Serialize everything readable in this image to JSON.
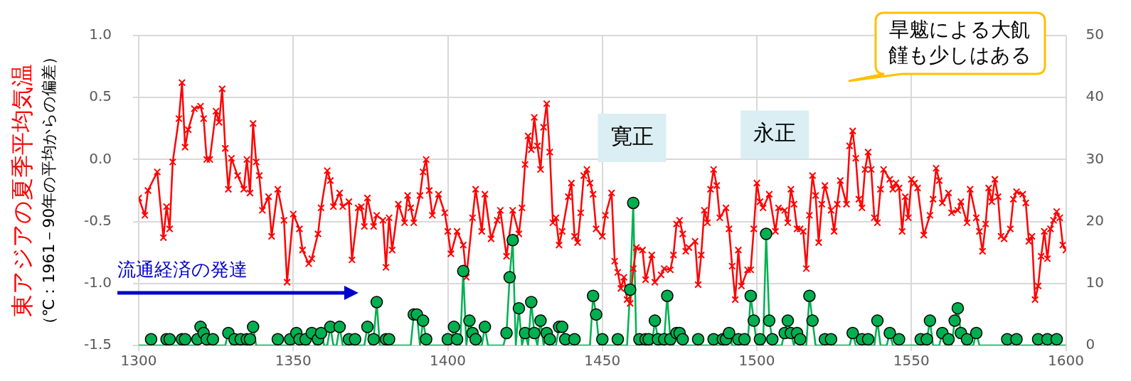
{
  "chart_data": {
    "type": "line",
    "ylabel": "東アジアの夏季平均気温",
    "x": [
      1300,
      1301,
      1302,
      1303,
      1304,
      1305,
      1306,
      1307,
      1308,
      1309,
      1310,
      1311,
      1312,
      1313,
      1314,
      1315,
      1316,
      1317,
      1318,
      1319,
      1320,
      1321,
      1322,
      1323,
      1324,
      1325,
      1326,
      1327,
      1328,
      1329,
      1330,
      1331,
      1332,
      1333,
      1334,
      1335,
      1336,
      1337,
      1338,
      1339,
      1340,
      1341,
      1342,
      1343,
      1344,
      1345,
      1346,
      1347,
      1348,
      1349,
      1350,
      1351,
      1352,
      1353,
      1354,
      1355,
      1356,
      1357,
      1358,
      1359,
      1360,
      1361,
      1362,
      1363,
      1364,
      1365,
      1366,
      1367,
      1368,
      1369,
      1370,
      1371,
      1372,
      1373,
      1374,
      1375,
      1376,
      1377,
      1378,
      1379,
      1380,
      1381,
      1382,
      1383,
      1384,
      1385,
      1386,
      1387,
      1388,
      1389,
      1390,
      1391,
      1392,
      1393,
      1394,
      1395,
      1396,
      1397,
      1398,
      1399,
      1400,
      1401,
      1402,
      1403,
      1404,
      1405,
      1406,
      1407,
      1408,
      1409,
      1410,
      1411,
      1412,
      1413,
      1414,
      1415,
      1416,
      1417,
      1418,
      1419,
      1420,
      1421,
      1422,
      1423,
      1424,
      1425,
      1426,
      1427,
      1428,
      1429,
      1430,
      1431,
      1432,
      1433,
      1434,
      1435,
      1436,
      1437,
      1438,
      1439,
      1440,
      1441,
      1442,
      1443,
      1444,
      1445,
      1446,
      1447,
      1448,
      1449,
      1450,
      1451,
      1452,
      1453,
      1454,
      1455,
      1456,
      1457,
      1458,
      1459,
      1460,
      1461,
      1462,
      1463,
      1464,
      1465,
      1466,
      1467,
      1468,
      1469,
      1470,
      1471,
      1472,
      1473,
      1474,
      1475,
      1476,
      1477,
      1478,
      1479,
      1480,
      1481,
      1482,
      1483,
      1484,
      1485,
      1486,
      1487,
      1488,
      1489,
      1490,
      1491,
      1492,
      1493,
      1494,
      1495,
      1496,
      1497,
      1498,
      1499,
      1500,
      1501,
      1502,
      1503,
      1504,
      1505,
      1506,
      1507,
      1508,
      1509,
      1510,
      1511,
      1512,
      1513,
      1514,
      1515,
      1516,
      1517,
      1518,
      1519,
      1520,
      1521,
      1522,
      1523,
      1524,
      1525,
      1526,
      1527,
      1528,
      1529,
      1530,
      1531,
      1532,
      1533,
      1534,
      1535,
      1536,
      1537,
      1538,
      1539,
      1540,
      1541,
      1542,
      1543,
      1544,
      1545,
      1546,
      1547,
      1548,
      1549,
      1550,
      1551,
      1552,
      1553,
      1554,
      1555,
      1556,
      1557,
      1558,
      1559,
      1560,
      1561,
      1562,
      1563,
      1564,
      1565,
      1566,
      1567,
      1568,
      1569,
      1570,
      1571,
      1572,
      1573,
      1574,
      1575,
      1576,
      1577,
      1578,
      1579,
      1580,
      1581,
      1582,
      1583,
      1584,
      1585,
      1586,
      1587,
      1588,
      1589,
      1590,
      1591,
      1592,
      1593,
      1594,
      1595,
      1596,
      1597,
      1598,
      1599,
      1600
    ],
    "series": [
      {
        "color": "#ff0000",
        "marker": "cross",
        "x": [
          1300,
          1302,
          1303,
          1306,
          1308,
          1309,
          1310,
          1311,
          1313,
          1314,
          1315,
          1316,
          1318,
          1320,
          1321,
          1322,
          1323,
          1325,
          1326,
          1327,
          1328,
          1329,
          1330,
          1332,
          1334,
          1335,
          1336,
          1337,
          1338,
          1339,
          1340,
          1342,
          1343,
          1345,
          1347,
          1348,
          1350,
          1352,
          1353,
          1355,
          1356,
          1358,
          1359,
          1361,
          1362,
          1363,
          1365,
          1366,
          1368,
          1369,
          1371,
          1372,
          1373,
          1374,
          1376,
          1377,
          1379,
          1380,
          1381,
          1382,
          1384,
          1386,
          1387,
          1388,
          1389,
          1391,
          1392,
          1393,
          1394,
          1395,
          1397,
          1399,
          1400,
          1401,
          1403,
          1405,
          1406,
          1408,
          1409,
          1411,
          1412,
          1414,
          1416,
          1417,
          1419,
          1421,
          1423,
          1424,
          1425,
          1426,
          1427,
          1428,
          1429,
          1430,
          1431,
          1432,
          1433,
          1434,
          1435,
          1436,
          1437,
          1439,
          1440,
          1441,
          1442,
          1443,
          1444,
          1445,
          1446,
          1447,
          1448,
          1450,
          1451,
          1453,
          1454,
          1455,
          1456,
          1457,
          1458,
          1459,
          1460,
          1461,
          1463,
          1464,
          1466,
          1467,
          1469,
          1470,
          1472,
          1473,
          1474,
          1475,
          1476,
          1477,
          1478,
          1480,
          1481,
          1482,
          1483,
          1484,
          1485,
          1486,
          1487,
          1488,
          1490,
          1491,
          1492,
          1493,
          1494,
          1495,
          1497,
          1498,
          1499,
          1500,
          1501,
          1502,
          1504,
          1506,
          1507,
          1509,
          1510,
          1511,
          1512,
          1513,
          1514,
          1515,
          1516,
          1517,
          1518,
          1519,
          1520,
          1521,
          1522,
          1524,
          1525,
          1526,
          1527,
          1529,
          1530,
          1531,
          1532,
          1533,
          1534,
          1535,
          1536,
          1537,
          1538,
          1539,
          1540,
          1541,
          1543,
          1544,
          1545,
          1546,
          1547,
          1548,
          1549,
          1550,
          1551,
          1552,
          1554,
          1556,
          1557,
          1558,
          1559,
          1560,
          1562,
          1563,
          1565,
          1566,
          1568,
          1569,
          1571,
          1572,
          1573,
          1574,
          1575,
          1576,
          1577,
          1578,
          1579,
          1580,
          1582,
          1583,
          1584,
          1586,
          1587,
          1588,
          1589,
          1590,
          1591,
          1592,
          1593,
          1594,
          1595,
          1596,
          1597,
          1598,
          1599,
          1600
        ],
        "values": [
          -0.31,
          -0.45,
          -0.25,
          -0.1,
          -0.63,
          -0.38,
          -0.56,
          -0.02,
          0.33,
          0.62,
          0.1,
          0.24,
          0.41,
          0.43,
          0.33,
          0.0,
          0.0,
          0.39,
          0.3,
          0.57,
          0.09,
          -0.24,
          0.01,
          -0.13,
          -0.24,
          0.0,
          -0.27,
          0.29,
          -0.02,
          -0.13,
          -0.41,
          -0.3,
          -0.62,
          -0.24,
          -0.49,
          -0.99,
          -0.44,
          -0.56,
          -0.73,
          -0.84,
          -0.8,
          -0.6,
          -0.39,
          -0.09,
          -0.17,
          -0.38,
          -0.27,
          -0.38,
          -0.34,
          -0.81,
          -0.39,
          -0.38,
          -0.54,
          -0.31,
          -0.54,
          -0.45,
          -0.49,
          -0.87,
          -0.47,
          -0.73,
          -0.36,
          -0.51,
          -0.29,
          -0.39,
          -0.51,
          -0.29,
          -0.1,
          0.0,
          -0.25,
          -0.45,
          -0.28,
          -0.43,
          -0.58,
          -0.76,
          -0.58,
          -0.69,
          -0.95,
          -0.47,
          -0.24,
          -0.58,
          -0.28,
          -0.64,
          -0.49,
          -0.41,
          -0.78,
          -0.41,
          -0.6,
          -0.39,
          -0.04,
          0.19,
          0.08,
          0.34,
          0.11,
          -0.08,
          0.26,
          0.45,
          0.06,
          -0.51,
          -0.47,
          -0.69,
          -0.58,
          -0.3,
          -0.19,
          -0.62,
          -0.67,
          -0.43,
          -0.13,
          -0.08,
          -0.19,
          -0.28,
          -0.56,
          -0.62,
          -0.45,
          -0.27,
          -0.82,
          -0.91,
          -1.04,
          -0.95,
          -1.13,
          -1.16,
          -0.88,
          -0.71,
          -0.73,
          -0.97,
          -0.77,
          -0.99,
          -0.93,
          -0.88,
          -0.89,
          -0.77,
          -0.52,
          -0.49,
          -0.6,
          -0.74,
          -0.71,
          -0.66,
          -1.01,
          -0.77,
          -0.41,
          -0.51,
          -0.24,
          -0.08,
          -0.21,
          -0.47,
          -0.39,
          -0.56,
          -0.86,
          -1.13,
          -0.73,
          -1.02,
          -0.89,
          -0.89,
          -0.56,
          -0.19,
          -0.34,
          -0.39,
          -0.28,
          -0.58,
          -0.39,
          -0.41,
          -0.51,
          -0.24,
          -0.36,
          -0.56,
          -0.56,
          -0.58,
          -0.88,
          -0.45,
          -0.13,
          -0.29,
          -0.67,
          -0.36,
          -0.21,
          -0.41,
          -0.58,
          -0.36,
          -0.17,
          -0.36,
          0.11,
          0.23,
          0.01,
          -0.32,
          -0.39,
          -0.08,
          0.06,
          -0.08,
          -0.47,
          -0.51,
          -0.24,
          -0.08,
          -0.16,
          -0.24,
          -0.19,
          -0.23,
          -0.58,
          -0.3,
          -0.47,
          -0.16,
          -0.19,
          -0.23,
          -0.61,
          -0.45,
          -0.32,
          -0.07,
          -0.17,
          -0.35,
          -0.27,
          -0.43,
          -0.41,
          -0.34,
          -0.51,
          -0.24,
          -0.47,
          -0.58,
          -0.74,
          -0.52,
          -0.23,
          -0.34,
          -0.16,
          -0.3,
          -0.62,
          -0.64,
          -0.56,
          -0.32,
          -0.26,
          -0.28,
          -0.35,
          -0.66,
          -0.62,
          -1.13,
          -1.02,
          -0.78,
          -0.58,
          -0.8,
          -0.56,
          -0.49,
          -0.42,
          -0.47,
          -0.69,
          -0.73
        ]
      },
      {
        "type": "scatter",
        "color": "#00b050",
        "marker": "circle",
        "axis": "y2",
        "x": [
          1304,
          1309,
          1310,
          1314,
          1315,
          1319,
          1320,
          1321,
          1322,
          1324,
          1329,
          1331,
          1333,
          1335,
          1336,
          1337,
          1345,
          1349,
          1351,
          1352,
          1354,
          1356,
          1358,
          1359,
          1362,
          1365,
          1368,
          1370,
          1374,
          1376,
          1377,
          1380,
          1381,
          1389,
          1390,
          1392,
          1393,
          1400,
          1402,
          1403,
          1405,
          1407,
          1408,
          1409,
          1412,
          1419,
          1420,
          1421,
          1423,
          1425,
          1427,
          1428,
          1430,
          1432,
          1433,
          1436,
          1437,
          1438,
          1441,
          1447,
          1448,
          1450,
          1455,
          1459,
          1460,
          1462,
          1464,
          1465,
          1467,
          1468,
          1470,
          1471,
          1472,
          1474,
          1475,
          1476,
          1481,
          1486,
          1489,
          1490,
          1491,
          1494,
          1496,
          1498,
          1499,
          1501,
          1503,
          1504,
          1505,
          1509,
          1510,
          1511,
          1513,
          1514,
          1517,
          1518,
          1522,
          1524,
          1531,
          1534,
          1536,
          1539,
          1543,
          1546,
          1553,
          1555,
          1556,
          1560,
          1562,
          1564,
          1565,
          1566,
          1568,
          1571,
          1581,
          1584,
          1591,
          1594,
          1597
        ],
        "values": [
          1,
          1,
          1,
          1,
          1,
          1,
          3,
          2,
          1,
          1,
          2,
          1,
          1,
          1,
          1,
          3,
          1,
          1,
          2,
          1,
          1,
          2,
          1,
          2,
          3,
          3,
          1,
          1,
          3,
          1,
          7,
          1,
          1,
          5,
          5,
          4,
          1,
          1,
          3,
          1,
          12,
          4,
          2,
          1,
          3,
          2,
          11,
          17,
          6,
          2,
          7,
          2,
          4,
          2,
          1,
          3,
          3,
          1,
          1,
          8,
          5,
          1,
          1,
          9,
          23,
          1,
          1,
          1,
          4,
          1,
          1,
          8,
          1,
          2,
          2,
          1,
          1,
          1,
          1,
          1,
          2,
          1,
          1,
          8,
          4,
          1,
          18,
          4,
          1,
          2,
          4,
          2,
          2,
          1,
          8,
          4,
          1,
          1,
          2,
          1,
          1,
          4,
          2,
          1,
          1,
          1,
          4,
          2,
          1,
          4,
          6,
          2,
          1,
          2,
          1,
          1,
          1,
          1,
          1
        ]
      },
      {
        "color": "#00b050",
        "marker": "none",
        "axis": "y2",
        "values": [
          0,
          0,
          0,
          0,
          1,
          0,
          0,
          0,
          0,
          1,
          1,
          0,
          0,
          0,
          1,
          1,
          0,
          0,
          0,
          1,
          3,
          2,
          1,
          0,
          1,
          0,
          0,
          0,
          0,
          2,
          0,
          1,
          0,
          1,
          0,
          1,
          1,
          3,
          0,
          0,
          0,
          0,
          0,
          0,
          0,
          1,
          0,
          0,
          0,
          1,
          0,
          2,
          1,
          0,
          1,
          0,
          2,
          0,
          1,
          2,
          0,
          0,
          3,
          0,
          0,
          3,
          0,
          0,
          1,
          0,
          1,
          0,
          0,
          0,
          3,
          0,
          1,
          7,
          0,
          0,
          1,
          1,
          0,
          0,
          0,
          0,
          0,
          0,
          0,
          5,
          5,
          0,
          4,
          1,
          0,
          0,
          0,
          0,
          0,
          0,
          1,
          0,
          3,
          1,
          0,
          12,
          0,
          4,
          2,
          1,
          0,
          0,
          3,
          0,
          0,
          0,
          0,
          0,
          0,
          2,
          11,
          17,
          0,
          6,
          0,
          2,
          0,
          7,
          2,
          0,
          4,
          0,
          2,
          1,
          0,
          0,
          3,
          3,
          1,
          0,
          0,
          1,
          0,
          0,
          0,
          0,
          0,
          8,
          5,
          0,
          1,
          0,
          0,
          0,
          0,
          1,
          0,
          0,
          0,
          9,
          23,
          0,
          1,
          0,
          1,
          1,
          0,
          4,
          1,
          0,
          1,
          8,
          1,
          0,
          2,
          2,
          1,
          0,
          0,
          0,
          0,
          1,
          0,
          0,
          0,
          0,
          1,
          0,
          0,
          1,
          1,
          2,
          0,
          0,
          1,
          0,
          1,
          0,
          8,
          4,
          0,
          1,
          0,
          18,
          4,
          1,
          0,
          0,
          0,
          2,
          4,
          2,
          0,
          2,
          1,
          0,
          0,
          8,
          4,
          0,
          0,
          0,
          1,
          0,
          1,
          0,
          0,
          0,
          0,
          0,
          0,
          2,
          0,
          0,
          1,
          0,
          1,
          0,
          0,
          4,
          0,
          0,
          0,
          2,
          0,
          0,
          1,
          0,
          0,
          0,
          0,
          0,
          0,
          1,
          0,
          1,
          4,
          0,
          0,
          0,
          2,
          0,
          1,
          0,
          4,
          6,
          2,
          0,
          1,
          0,
          0,
          2,
          0,
          0,
          0,
          0,
          0,
          0,
          0,
          0,
          0,
          1,
          0,
          0,
          1,
          0,
          0,
          0,
          0,
          0,
          0,
          1,
          0,
          0,
          1,
          0,
          0,
          1,
          0,
          0,
          0
        ]
      }
    ],
    "xlim": [
      1300,
      1600
    ],
    "xticks": [
      1300,
      1350,
      1400,
      1450,
      1500,
      1550,
      1600
    ],
    "ylim": [
      -1.5,
      1
    ],
    "yticks": [
      {
        "value": -1.5,
        "label": "-1.5"
      },
      {
        "value": -1,
        "label": "-1.0"
      },
      {
        "value": -0.5,
        "label": "-0.5"
      },
      {
        "value": 0,
        "label": "0.0"
      },
      {
        "value": 0.5,
        "label": "0.5"
      },
      {
        "value": 1,
        "label": "1.0"
      }
    ],
    "y2lim": [
      0,
      50
    ],
    "y2ticks": [
      0,
      10,
      20,
      30,
      40,
      50
    ],
    "grid": true,
    "legend": false,
    "annotations": [
      "寛正",
      "永正",
      "流通経済の発達",
      "旱魃による大飢饉も少しはある",
      "（℃：1961－90年の平均からの偏差）"
    ]
  }
}
